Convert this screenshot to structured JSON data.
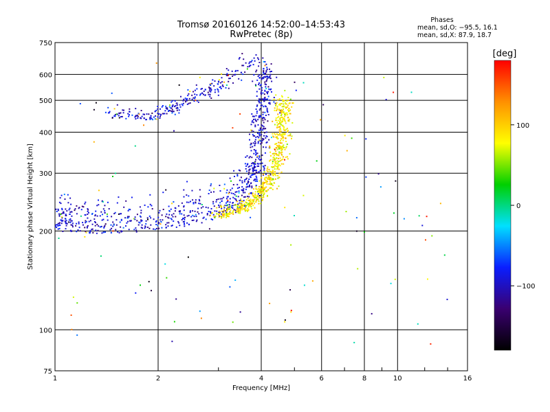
{
  "chart_data": {
    "type": "scatter",
    "title": "Tromsø 20160126 14:52:00–14:53:43",
    "subtitle": "RwPretec (8p)",
    "xlabel": "Frequency [MHz]",
    "ylabel": "Stationary phase Virtual Height [km]",
    "x_scale": "log",
    "y_scale": "log",
    "xlim": [
      1,
      16
    ],
    "ylim": [
      75,
      750
    ],
    "x_ticks": [
      1,
      2,
      4,
      6,
      8,
      10,
      16
    ],
    "x_tick_labels": [
      "1",
      "2",
      "4",
      "6",
      "8",
      "10",
      "16"
    ],
    "y_ticks": [
      75,
      100,
      200,
      300,
      400,
      500,
      600,
      750
    ],
    "y_tick_labels": [
      "75",
      "100",
      "200",
      "300",
      "400",
      "500",
      "600",
      "750"
    ],
    "grid": true,
    "phases_box": {
      "title": "Phases",
      "line1": "mean, sd,O: −95.5, 16.1",
      "line2": "mean, sd,X:  87.9, 18.7"
    },
    "colorbar": {
      "label": "[deg]",
      "range": [
        -180,
        180
      ],
      "ticks": [
        100,
        0,
        -100
      ],
      "tick_labels": [
        "100",
        "0",
        "−100"
      ],
      "stops": [
        "#000000",
        "#3a0070",
        "#0a1eff",
        "#00e0ff",
        "#00d000",
        "#ffff00",
        "#ff9000",
        "#ff0000"
      ]
    },
    "series": [
      {
        "mode": "O",
        "phase_mean": -95.5,
        "phase_sd": 16.1,
        "color": "#1a2bd6",
        "trace": [
          {
            "f": 1.0,
            "h": 205
          },
          {
            "f": 1.1,
            "h": 198
          },
          {
            "f": 1.3,
            "h": 196
          },
          {
            "f": 1.6,
            "h": 198
          },
          {
            "f": 2.0,
            "h": 202
          },
          {
            "f": 2.5,
            "h": 208
          },
          {
            "f": 3.0,
            "h": 218
          },
          {
            "f": 3.4,
            "h": 235
          },
          {
            "f": 3.7,
            "h": 265
          },
          {
            "f": 3.85,
            "h": 300
          },
          {
            "f": 3.95,
            "h": 360
          },
          {
            "f": 4.0,
            "h": 420
          },
          {
            "f": 4.05,
            "h": 500
          },
          {
            "f": 4.08,
            "h": 600
          }
        ]
      },
      {
        "mode": "X",
        "phase_mean": 87.9,
        "phase_sd": 18.7,
        "color": "#ffe000",
        "trace": [
          {
            "f": 3.0,
            "h": 218
          },
          {
            "f": 3.4,
            "h": 225
          },
          {
            "f": 3.8,
            "h": 240
          },
          {
            "f": 4.1,
            "h": 260
          },
          {
            "f": 4.35,
            "h": 290
          },
          {
            "f": 4.5,
            "h": 330
          },
          {
            "f": 4.58,
            "h": 380
          },
          {
            "f": 4.62,
            "h": 430
          },
          {
            "f": 4.65,
            "h": 500
          }
        ]
      },
      {
        "mode": "upper-O",
        "color": "#1a2bd6",
        "trace": [
          {
            "f": 1.45,
            "h": 440
          },
          {
            "f": 1.9,
            "h": 435
          },
          {
            "f": 2.3,
            "h": 470
          },
          {
            "f": 2.8,
            "h": 520
          },
          {
            "f": 3.3,
            "h": 580
          },
          {
            "f": 3.8,
            "h": 650
          }
        ]
      }
    ]
  }
}
